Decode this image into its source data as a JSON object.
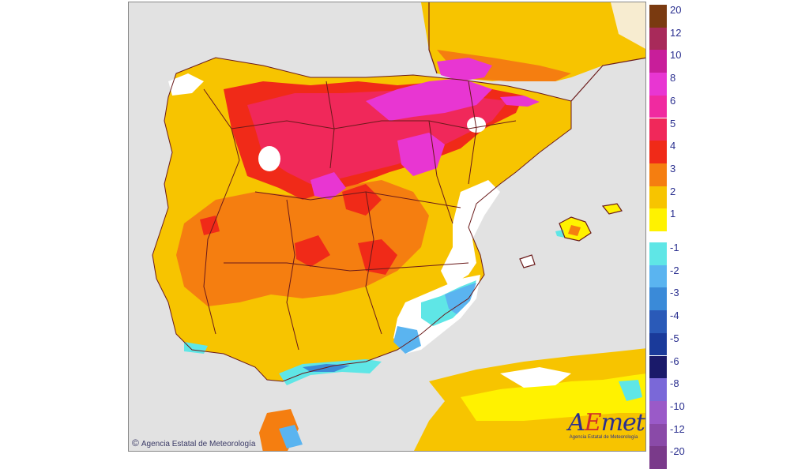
{
  "map": {
    "copyright": "Agencia Estatal de Meteorología",
    "logo": {
      "word_a": "A",
      "word_e": "E",
      "word_met": "met",
      "subtitle": "Agencia Estatal de Meteorología"
    }
  },
  "legend": {
    "positive": [
      {
        "label": "20",
        "color": "#7a3a10"
      },
      {
        "label": "12",
        "color": "#a82a5a"
      },
      {
        "label": "10",
        "color": "#c81e9a"
      },
      {
        "label": "8",
        "color": "#e836d2"
      },
      {
        "label": "6",
        "color": "#f02aa0"
      },
      {
        "label": "5",
        "color": "#f0285a"
      },
      {
        "label": "4",
        "color": "#f02a18"
      },
      {
        "label": "3",
        "color": "#f57e10"
      },
      {
        "label": "2",
        "color": "#f7c400"
      },
      {
        "label": "1",
        "color": "#fff200"
      }
    ],
    "gap_color": "#ffffff",
    "negative": [
      {
        "label": "-1",
        "color": "#5fe6e6"
      },
      {
        "label": "-2",
        "color": "#5ab4f0"
      },
      {
        "label": "-3",
        "color": "#3a8ad8"
      },
      {
        "label": "-4",
        "color": "#2a5ab8"
      },
      {
        "label": "-5",
        "color": "#1a3a9a"
      },
      {
        "label": "-6",
        "color": "#1a1a6a"
      },
      {
        "label": "-8",
        "color": "#7a68d8"
      },
      {
        "label": "-10",
        "color": "#9a5ac8"
      },
      {
        "label": "-12",
        "color": "#8a4aa8"
      },
      {
        "label": "-20",
        "color": "#7a3a8a"
      }
    ]
  },
  "colors": {
    "sea": "#e2e2e2",
    "border_lines": "#6a1a1a",
    "warm_far_sw": "#f7c400",
    "warm_mid": "#f57e10",
    "hot": "#f02a18",
    "very_hot": "#f0285a",
    "extreme": "#e836d2",
    "light": "#fff200",
    "neutral": "#ffffff",
    "cool_1": "#5fe6e6",
    "cool_2": "#5ab4f0",
    "cool_3": "#3a8ad8"
  }
}
